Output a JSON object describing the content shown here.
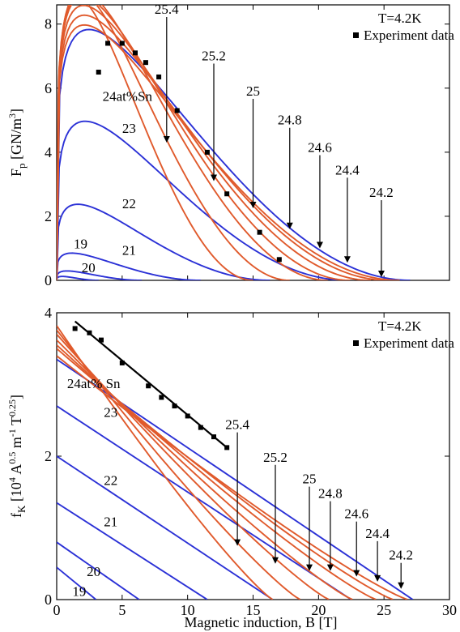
{
  "colors": {
    "blue": "#2b31d6",
    "red": "#e05a2c",
    "black": "#000000",
    "axis": "#000000"
  },
  "chart_data": [
    {
      "type": "line",
      "title": "",
      "xlabel": "",
      "ylabel": "F_p [GN/m^3]",
      "xlim": [
        0,
        30
      ],
      "ylim": [
        0,
        8.6
      ],
      "x_ticks": [
        0,
        5,
        10,
        15,
        20,
        25,
        30
      ],
      "y_ticks": [
        0,
        2,
        4,
        6,
        8
      ],
      "x_tick_labels": [
        "",
        "",
        "",
        "",
        "",
        "",
        ""
      ],
      "y_tick_labels": [
        "0",
        "2",
        "4",
        "6",
        "8"
      ],
      "legend": {
        "position": "top-right",
        "title": "T=4.2K",
        "marker_label": "Experiment data"
      },
      "series": [
        {
          "composition": "19",
          "color": "blue",
          "bc2": 3.2,
          "fmax": 0.1,
          "peak": 1.0
        },
        {
          "composition": "20",
          "color": "blue",
          "bc2": 6.5,
          "fmax": 0.25,
          "peak": 1.8
        },
        {
          "composition": "21",
          "color": "blue",
          "bc2": 11.0,
          "fmax": 0.75,
          "peak": 2.6
        },
        {
          "composition": "22",
          "color": "blue",
          "bc2": 16.3,
          "fmax": 2.12,
          "peak": 3.6
        },
        {
          "composition": "23",
          "color": "blue",
          "bc2": 22.2,
          "fmax": 4.45,
          "peak": 4.8
        },
        {
          "composition": "24",
          "color": "blue",
          "bc2": 27.0,
          "fmax": 7.1,
          "peak": 5.4
        },
        {
          "composition": "24.2",
          "color": "red",
          "bc2": 26.2,
          "fmax": 7.35,
          "peak": 4.6
        },
        {
          "composition": "24.4",
          "color": "red",
          "bc2": 25.3,
          "fmax": 7.6,
          "peak": 4.6
        },
        {
          "composition": "24.6",
          "color": "red",
          "bc2": 24.0,
          "fmax": 7.85,
          "peak": 4.5
        },
        {
          "composition": "24.8",
          "color": "red",
          "bc2": 22.4,
          "fmax": 8.05,
          "peak": 4.4
        },
        {
          "composition": "25",
          "color": "red",
          "bc2": 20.7,
          "fmax": 8.15,
          "peak": 4.3
        },
        {
          "composition": "25.2",
          "color": "red",
          "bc2": 17.8,
          "fmax": 8.0,
          "peak": 4.0
        },
        {
          "composition": "25.4",
          "color": "red",
          "bc2": 15.0,
          "fmax": 7.7,
          "peak": 3.7
        }
      ],
      "experiment": {
        "x": [
          3.2,
          3.9,
          5.0,
          6.0,
          6.8,
          7.8,
          9.2,
          11.5,
          13.0,
          15.5,
          17.0
        ],
        "y": [
          6.5,
          7.4,
          7.4,
          7.1,
          6.8,
          6.35,
          5.3,
          4.0,
          2.7,
          1.5,
          0.65
        ]
      },
      "labels": [
        {
          "text": "24at%Sn",
          "x": 3.5,
          "y": 5.6
        },
        {
          "text": "23",
          "x": 5.0,
          "y": 4.6
        },
        {
          "text": "22",
          "x": 5.0,
          "y": 2.25
        },
        {
          "text": "21",
          "x": 5.0,
          "y": 0.8
        },
        {
          "text": "20",
          "x": 1.9,
          "y": 0.25
        },
        {
          "text": "19",
          "x": 1.3,
          "y": 1.0
        }
      ],
      "arrows": [
        {
          "text": "25.4",
          "x": 8.4,
          "y_tip": 4.3
        },
        {
          "text": "25.2",
          "x": 12.0,
          "y_tip": 3.1
        },
        {
          "text": "25",
          "x": 15.0,
          "y_tip": 2.25
        },
        {
          "text": "24.8",
          "x": 17.8,
          "y_tip": 1.6
        },
        {
          "text": "24.6",
          "x": 20.1,
          "y_tip": 1.0
        },
        {
          "text": "24.4",
          "x": 22.2,
          "y_tip": 0.55
        },
        {
          "text": "24.2",
          "x": 24.8,
          "y_tip": 0.1
        }
      ]
    },
    {
      "type": "line",
      "title": "",
      "xlabel": "Magnetic induction, B [T]",
      "ylabel": "f_K [10^4 A^0.5 m^-1 T^0.25]",
      "xlim": [
        0,
        30
      ],
      "ylim": [
        0,
        4
      ],
      "x_ticks": [
        0,
        5,
        10,
        15,
        20,
        25,
        30
      ],
      "y_ticks": [
        0,
        2,
        4
      ],
      "x_tick_labels": [
        "0",
        "5",
        "10",
        "15",
        "20",
        "25",
        "30"
      ],
      "y_tick_labels": [
        "0",
        "2",
        "4"
      ],
      "legend": {
        "position": "top-right",
        "title": "T=4.2K",
        "marker_label": "Experiment data"
      },
      "series": [
        {
          "composition": "19",
          "color": "blue",
          "y0": 0.45,
          "bc2": 3.0
        },
        {
          "composition": "20",
          "color": "blue",
          "y0": 0.8,
          "bc2": 6.3
        },
        {
          "composition": "21",
          "color": "blue",
          "y0": 1.35,
          "bc2": 11.5
        },
        {
          "composition": "22",
          "color": "blue",
          "y0": 2.0,
          "bc2": 16.5
        },
        {
          "composition": "23",
          "color": "blue",
          "y0": 2.7,
          "bc2": 22.5
        },
        {
          "composition": "24",
          "color": "blue",
          "y0": 3.35,
          "bc2": 27.2
        },
        {
          "composition": "24.2",
          "color": "red",
          "y0": 3.4,
          "bc2": 26.8
        },
        {
          "composition": "24.4",
          "color": "red",
          "y0": 3.5,
          "bc2": 25.7
        },
        {
          "composition": "24.6",
          "color": "red",
          "y0": 3.55,
          "bc2": 24.4
        },
        {
          "composition": "24.8",
          "color": "red",
          "y0": 3.62,
          "bc2": 22.6
        },
        {
          "composition": "25",
          "color": "red",
          "y0": 3.7,
          "bc2": 20.8
        },
        {
          "composition": "25.2",
          "color": "red",
          "y0": 3.76,
          "bc2": 18.6
        },
        {
          "composition": "25.4",
          "color": "red",
          "y0": 3.82,
          "bc2": 16.5
        }
      ],
      "experiment": {
        "x": [
          1.4,
          2.5,
          3.4,
          5.0,
          7.0,
          8.0,
          9.0,
          10.0,
          11.0,
          12.0,
          13.0
        ],
        "y": [
          3.78,
          3.72,
          3.62,
          3.3,
          2.98,
          2.82,
          2.7,
          2.56,
          2.4,
          2.27,
          2.12
        ]
      },
      "fit_line": {
        "x": [
          1.4,
          13.0
        ],
        "y": [
          3.88,
          2.12
        ]
      },
      "labels": [
        {
          "text": "24at% Sn",
          "x": 0.8,
          "y": 2.95
        },
        {
          "text": "23",
          "x": 3.6,
          "y": 2.55
        },
        {
          "text": "22",
          "x": 3.6,
          "y": 1.6
        },
        {
          "text": "21",
          "x": 3.6,
          "y": 1.02
        },
        {
          "text": "20",
          "x": 2.3,
          "y": 0.33
        },
        {
          "text": "19",
          "x": 1.2,
          "y": 0.05
        }
      ],
      "arrows": [
        {
          "text": "25.4",
          "x": 13.8,
          "y_tip": 0.75
        },
        {
          "text": "25.2",
          "x": 16.7,
          "y_tip": 0.5
        },
        {
          "text": "25",
          "x": 19.3,
          "y_tip": 0.4
        },
        {
          "text": "24.8",
          "x": 20.9,
          "y_tip": 0.4
        },
        {
          "text": "24.6",
          "x": 22.9,
          "y_tip": 0.32
        },
        {
          "text": "24.4",
          "x": 24.5,
          "y_tip": 0.25
        },
        {
          "text": "24.2",
          "x": 26.3,
          "y_tip": 0.15
        }
      ]
    }
  ]
}
